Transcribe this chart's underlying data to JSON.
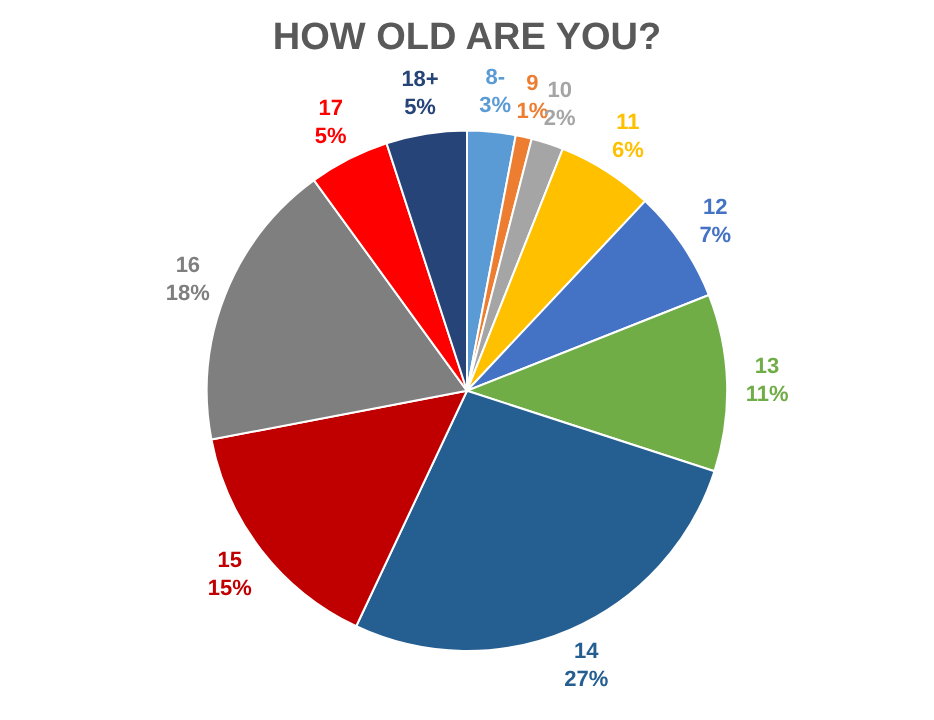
{
  "chart_data": {
    "type": "pie",
    "title": "HOW OLD ARE YOU?",
    "categories": [
      "8-",
      "9",
      "10",
      "11",
      "12",
      "13",
      "14",
      "15",
      "16",
      "17",
      "18+"
    ],
    "values": [
      3,
      1,
      2,
      6,
      7,
      11,
      27,
      15,
      18,
      5,
      5
    ],
    "value_labels": [
      "3%",
      "1%",
      "2%",
      "6%",
      "7%",
      "11%",
      "27%",
      "15%",
      "18%",
      "5%",
      "5%"
    ],
    "colors": [
      "#5b9bd5",
      "#ed7d31",
      "#a5a5a5",
      "#ffc000",
      "#4472c4",
      "#70ad47",
      "#255e91",
      "#c00000",
      "#7f7f7f",
      "#ff0000",
      "#264478"
    ],
    "legend": false
  }
}
